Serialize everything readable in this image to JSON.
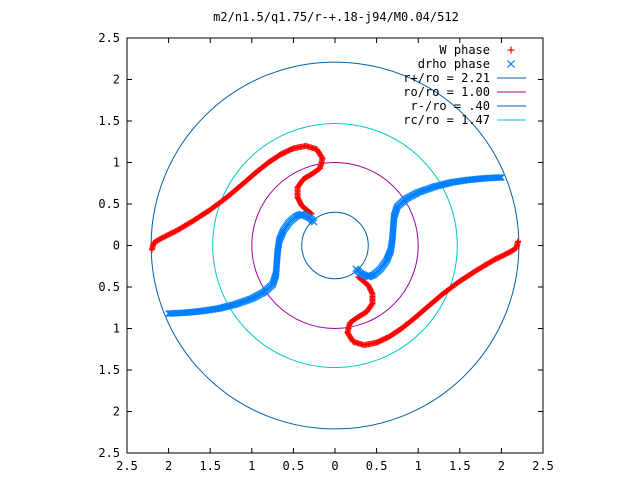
{
  "chart_data": {
    "type": "scatter",
    "title": "m2/n1.5/q1.75/r-+.18-j94/M0.04/512",
    "xlim": [
      -2.5,
      2.5
    ],
    "ylim": [
      -2.5,
      2.5
    ],
    "x_tick_values": [
      -2.5,
      -2,
      -1.5,
      -1,
      -0.5,
      0,
      0.5,
      1,
      1.5,
      2,
      2.5
    ],
    "x_tick_labels": [
      "2.5",
      "2",
      "1.5",
      "1",
      "0.5",
      "0",
      "0.5",
      "1",
      "1.5",
      "2",
      "2.5"
    ],
    "y_tick_values": [
      2.5,
      2,
      1.5,
      1,
      0.5,
      0,
      -0.5,
      -1,
      -1.5,
      -2,
      -2.5
    ],
    "y_tick_labels": [
      "2.5",
      "2",
      "1.5",
      "1",
      "0.5",
      "0",
      "0.5",
      "1",
      "1.5",
      "2",
      "2.5"
    ],
    "grid": false,
    "legend_position": "top-right",
    "series": [
      {
        "name": "W phase",
        "marker": "plus",
        "color": "#ff0000",
        "points": [
          [
            -2.2,
            -0.05
          ],
          [
            -2.18,
            0.03
          ],
          [
            -2.1,
            0.08
          ],
          [
            -1.9,
            0.18
          ],
          [
            -1.7,
            0.3
          ],
          [
            -1.5,
            0.43
          ],
          [
            -1.3,
            0.58
          ],
          [
            -1.1,
            0.75
          ],
          [
            -0.95,
            0.88
          ],
          [
            -0.8,
            1.0
          ],
          [
            -0.65,
            1.1
          ],
          [
            -0.5,
            1.17
          ],
          [
            -0.35,
            1.2
          ],
          [
            -0.22,
            1.16
          ],
          [
            -0.15,
            1.05
          ],
          [
            -0.18,
            0.93
          ],
          [
            -0.28,
            0.86
          ],
          [
            -0.38,
            0.8
          ],
          [
            -0.45,
            0.7
          ],
          [
            -0.45,
            0.58
          ],
          [
            -0.4,
            0.48
          ],
          [
            -0.33,
            0.42
          ],
          [
            -0.28,
            0.38
          ],
          [
            2.2,
            0.05
          ],
          [
            2.18,
            -0.03
          ],
          [
            2.1,
            -0.08
          ],
          [
            1.9,
            -0.18
          ],
          [
            1.7,
            -0.3
          ],
          [
            1.5,
            -0.43
          ],
          [
            1.3,
            -0.58
          ],
          [
            1.1,
            -0.75
          ],
          [
            0.95,
            -0.88
          ],
          [
            0.8,
            -1.0
          ],
          [
            0.65,
            -1.1
          ],
          [
            0.5,
            -1.17
          ],
          [
            0.35,
            -1.2
          ],
          [
            0.22,
            -1.16
          ],
          [
            0.15,
            -1.05
          ],
          [
            0.18,
            -0.93
          ],
          [
            0.28,
            -0.86
          ],
          [
            0.38,
            -0.8
          ],
          [
            0.45,
            -0.7
          ],
          [
            0.45,
            -0.58
          ],
          [
            0.4,
            -0.48
          ],
          [
            0.33,
            -0.42
          ],
          [
            0.28,
            -0.38
          ]
        ]
      },
      {
        "name": "drho phase",
        "marker": "cross",
        "color": "#0080ff",
        "points": [
          [
            2.0,
            0.82
          ],
          [
            1.8,
            0.81
          ],
          [
            1.6,
            0.79
          ],
          [
            1.4,
            0.76
          ],
          [
            1.2,
            0.71
          ],
          [
            1.0,
            0.64
          ],
          [
            0.85,
            0.56
          ],
          [
            0.75,
            0.47
          ],
          [
            0.71,
            0.35
          ],
          [
            0.7,
            0.22
          ],
          [
            0.69,
            0.08
          ],
          [
            0.67,
            -0.06
          ],
          [
            0.62,
            -0.18
          ],
          [
            0.55,
            -0.28
          ],
          [
            0.47,
            -0.35
          ],
          [
            0.4,
            -0.38
          ],
          [
            0.3,
            -0.33
          ],
          [
            0.25,
            -0.28
          ],
          [
            -2.0,
            -0.82
          ],
          [
            -1.8,
            -0.81
          ],
          [
            -1.6,
            -0.79
          ],
          [
            -1.4,
            -0.76
          ],
          [
            -1.2,
            -0.71
          ],
          [
            -1.0,
            -0.64
          ],
          [
            -0.85,
            -0.56
          ],
          [
            -0.75,
            -0.47
          ],
          [
            -0.71,
            -0.35
          ],
          [
            -0.7,
            -0.22
          ],
          [
            -0.69,
            -0.08
          ],
          [
            -0.67,
            0.06
          ],
          [
            -0.62,
            0.18
          ],
          [
            -0.55,
            0.28
          ],
          [
            -0.47,
            0.35
          ],
          [
            -0.4,
            0.38
          ],
          [
            -0.3,
            0.33
          ],
          [
            -0.25,
            0.28
          ]
        ]
      },
      {
        "name": "r+/ro = 2.21",
        "kind": "circle",
        "radius": 2.21,
        "color": "#0060ad"
      },
      {
        "name": "ro/ro = 1.00",
        "kind": "circle",
        "radius": 1.0,
        "color": "#a000a0"
      },
      {
        "name": "r-/ro = .40",
        "kind": "circle",
        "radius": 0.4,
        "color": "#0060ad"
      },
      {
        "name": "rc/ro = 1.47",
        "kind": "circle",
        "radius": 1.47,
        "color": "#00c8c8"
      }
    ]
  }
}
